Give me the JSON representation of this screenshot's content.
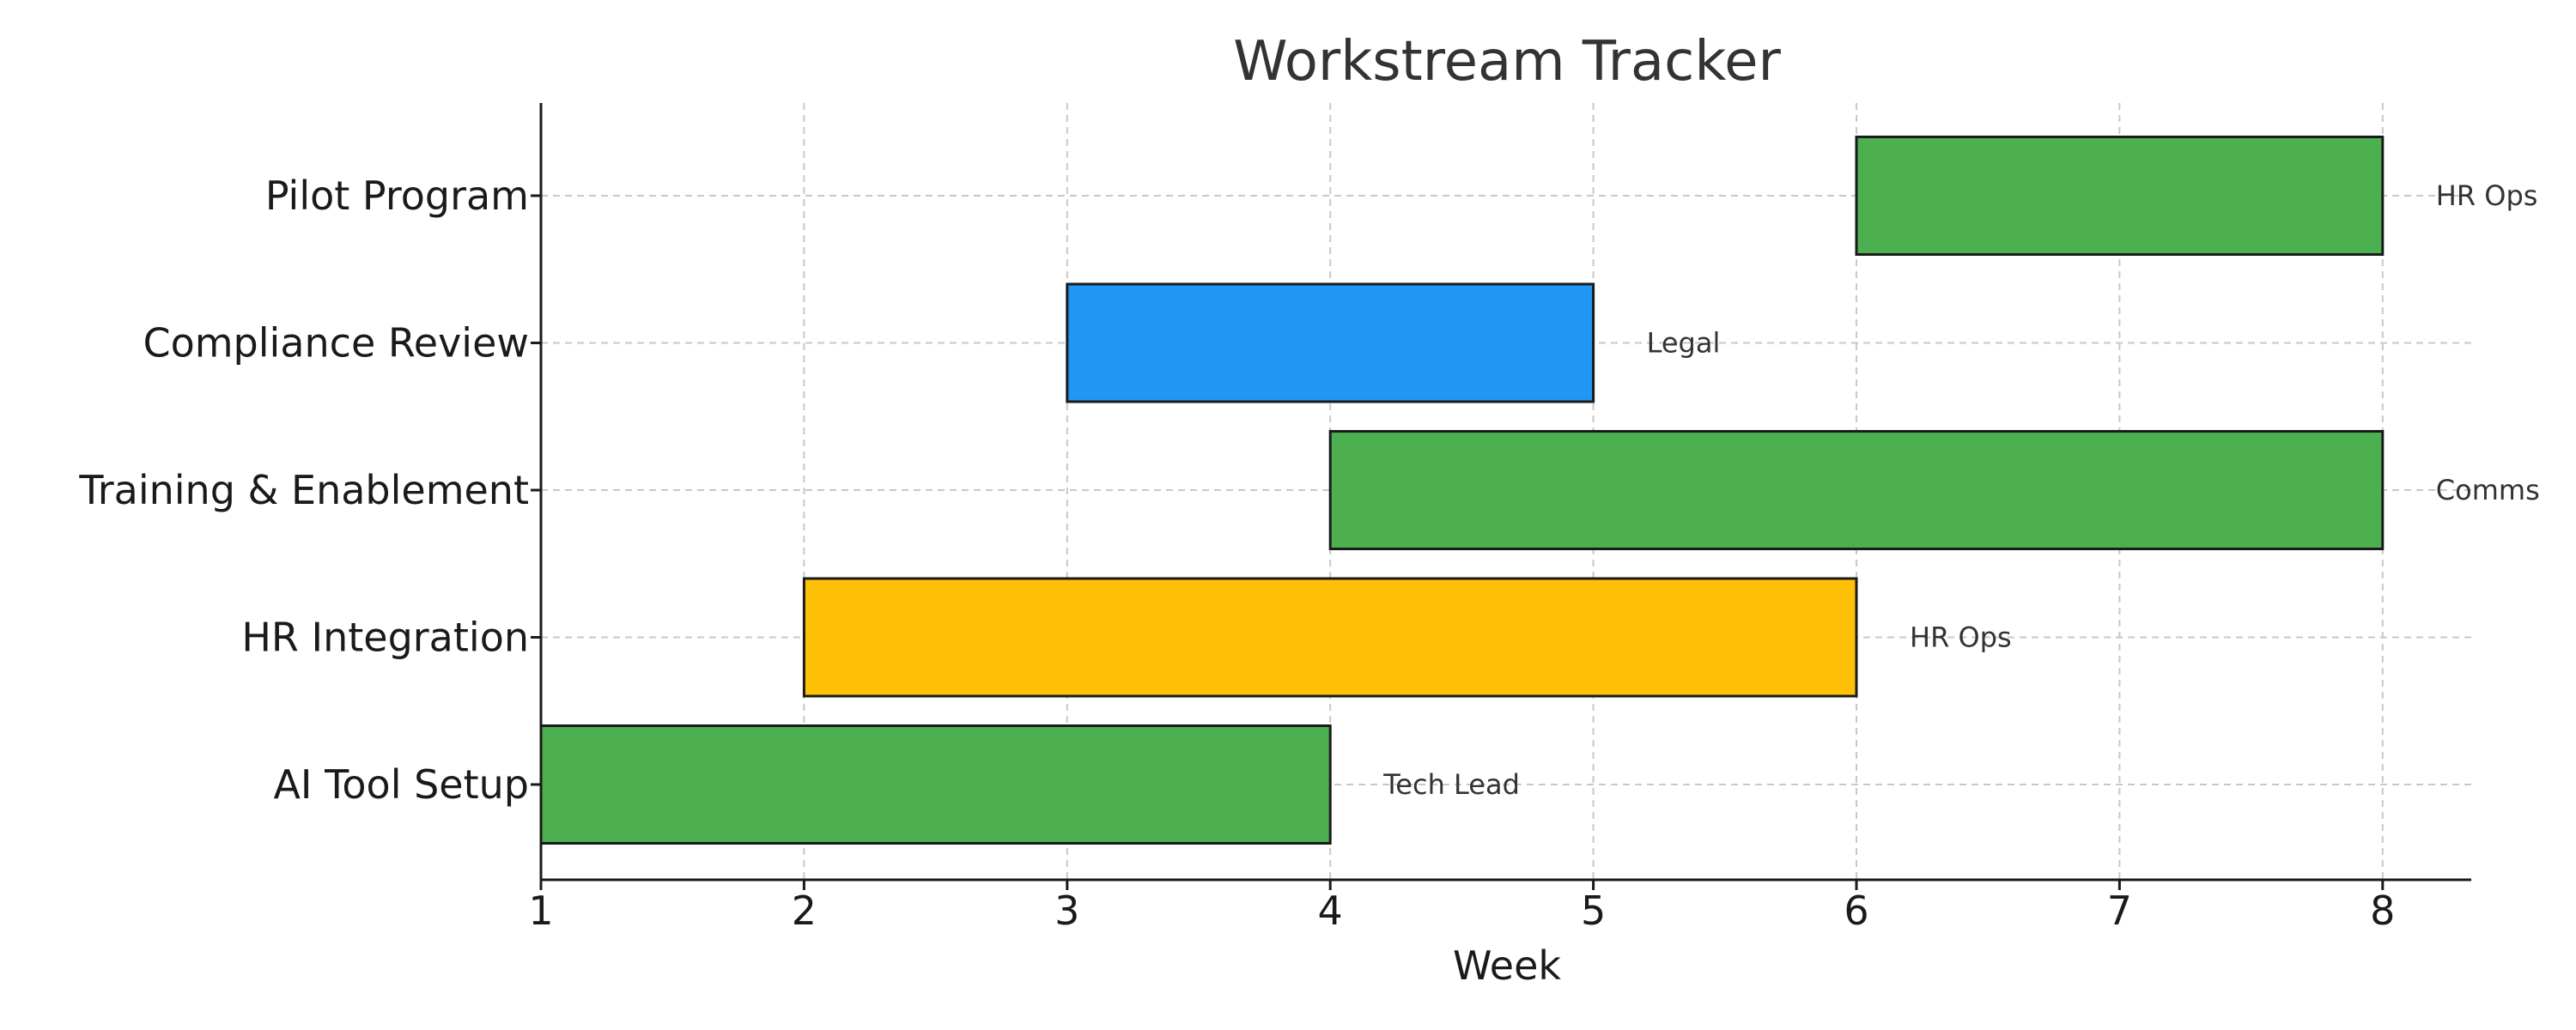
{
  "chart_data": {
    "type": "bar",
    "orientation": "horizontal",
    "subtype": "gantt",
    "title": "Workstream Tracker",
    "xlabel": "Week",
    "ylabel": "",
    "xlim": [
      1,
      8.35
    ],
    "xticks": [
      1,
      2,
      3,
      4,
      5,
      6,
      7,
      8
    ],
    "grid": true,
    "tasks": [
      {
        "name": "AI Tool Setup",
        "start": 1,
        "end": 4,
        "owner": "Tech Lead",
        "color": "#4caf50"
      },
      {
        "name": "HR Integration",
        "start": 2,
        "end": 6,
        "owner": "HR Ops",
        "color": "#ffc107"
      },
      {
        "name": "Training & Enablement",
        "start": 4,
        "end": 8,
        "owner": "Comms",
        "color": "#4caf50"
      },
      {
        "name": "Compliance Review",
        "start": 3,
        "end": 5,
        "owner": "Legal",
        "color": "#2196f3"
      },
      {
        "name": "Pilot Program",
        "start": 6,
        "end": 8,
        "owner": "HR Ops",
        "color": "#4caf50"
      }
    ]
  }
}
